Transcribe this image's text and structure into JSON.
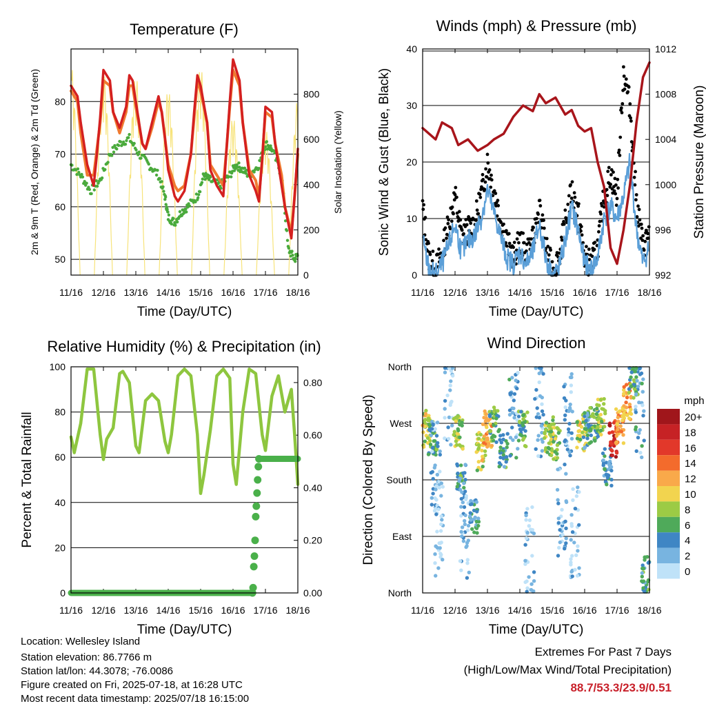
{
  "colors": {
    "t2m": "#d42020",
    "t9m": "#f07a30",
    "td": "#4aaa3c",
    "solar": "#f7e37a",
    "gust": "#000000",
    "wind": "#5b9fd8",
    "pressure": "#a8151b",
    "rh": "#8ec63f",
    "precip": "#4ab04a",
    "extremes": "#c8202a"
  },
  "footer": {
    "location": "Location: Wellesley Island",
    "elevation": "Station elevation: 86.7766 m",
    "latlon": "Station lat/lon: 44.3078; -76.0086",
    "created": "Figure created on Fri, 2025-07-18, at 16:28 UTC",
    "recent": "Most recent data timestamp: 2025/07/18 16:15:00"
  },
  "extremes": {
    "title": "Extremes For Past 7 Days",
    "subtitle": "(High/Low/Max Wind/Total Precipitation)",
    "values": "88.7/53.3/23.9/0.51"
  },
  "chart_data": [
    {
      "type": "line",
      "title": "Temperature (F)",
      "xlabel": "Time (Day/UTC)",
      "ylabel": "2m & 9m T (Red, Orange) & 2m Td (Green)",
      "y2label": "Solar Insolation (Yellow)",
      "x_ticks": [
        "11/16",
        "12/16",
        "13/16",
        "14/16",
        "15/16",
        "16/16",
        "17/16",
        "18/16"
      ],
      "ylim": [
        47,
        90
      ],
      "y_ticks": [
        50,
        60,
        70,
        80
      ],
      "y2lim": [
        0,
        1000
      ],
      "y2_ticks": [
        0,
        200,
        400,
        600,
        800
      ],
      "grid": "horizontal",
      "series": [
        {
          "name": "2m T",
          "axis": "left",
          "key": "t2m",
          "x": [
            0,
            0.2,
            0.3,
            0.5,
            0.7,
            0.8,
            0.9,
            1.0,
            1.2,
            1.3,
            1.5,
            1.7,
            1.8,
            1.9,
            2.0,
            2.2,
            2.3,
            2.5,
            2.7,
            2.8,
            2.9,
            3.0,
            3.2,
            3.3,
            3.5,
            3.7,
            3.8,
            3.9,
            4.0,
            4.2,
            4.3,
            4.5,
            4.7,
            4.8,
            4.9,
            5.0,
            5.2,
            5.3,
            5.5,
            5.7,
            5.8,
            5.9,
            6.0,
            6.2,
            6.3,
            6.5,
            6.6,
            6.8,
            6.9,
            7.0
          ],
          "y": [
            83,
            81,
            76,
            68,
            64,
            70,
            77,
            86,
            84,
            78,
            75,
            79,
            85,
            84,
            80,
            72,
            71,
            76,
            81,
            78,
            73,
            67,
            62,
            61,
            63,
            70,
            78,
            85,
            83,
            76,
            67,
            64,
            62,
            71,
            80,
            88,
            84,
            76,
            66,
            63,
            61,
            69,
            79,
            78,
            72,
            64,
            60,
            54,
            62,
            71
          ]
        },
        {
          "name": "9m T",
          "axis": "left",
          "key": "t9m",
          "x": [
            0,
            0.2,
            0.3,
            0.5,
            0.7,
            0.8,
            0.9,
            1.0,
            1.2,
            1.3,
            1.5,
            1.7,
            1.8,
            1.9,
            2.0,
            2.2,
            2.3,
            2.5,
            2.7,
            2.8,
            2.9,
            3.0,
            3.2,
            3.3,
            3.5,
            3.7,
            3.8,
            3.9,
            4.0,
            4.2,
            4.3,
            4.5,
            4.7,
            4.8,
            4.9,
            5.0,
            5.2,
            5.3,
            5.5,
            5.7,
            5.8,
            5.9,
            6.0,
            6.2,
            6.3,
            6.5,
            6.6,
            6.8,
            6.9,
            7.0
          ],
          "y": [
            82,
            80,
            74,
            66,
            66,
            71,
            76,
            84,
            83,
            78,
            74,
            78,
            83,
            83,
            79,
            72,
            71,
            75,
            80,
            78,
            73,
            68,
            64,
            63,
            64,
            70,
            77,
            84,
            82,
            76,
            68,
            66,
            64,
            71,
            79,
            86,
            83,
            76,
            67,
            65,
            62,
            69,
            78,
            77,
            72,
            66,
            60,
            55,
            62,
            70
          ]
        },
        {
          "name": "2m Td",
          "axis": "left",
          "key": "td",
          "x": [
            0,
            0.3,
            0.6,
            0.9,
            1.2,
            1.5,
            1.8,
            2.1,
            2.4,
            2.7,
            2.9,
            3.0,
            3.2,
            3.4,
            3.6,
            3.9,
            4.1,
            4.3,
            4.6,
            4.9,
            5.1,
            5.3,
            5.5,
            5.8,
            6.0,
            6.2,
            6.5,
            6.7,
            6.9,
            7.0
          ],
          "y": [
            68,
            66,
            63,
            65,
            70,
            72,
            73,
            70,
            68,
            66,
            62,
            58,
            57,
            59,
            60,
            62,
            66,
            65,
            64,
            66,
            68,
            67,
            66,
            68,
            72,
            71,
            66,
            52,
            50,
            51
          ]
        },
        {
          "name": "Solar",
          "axis": "right",
          "key": "solar",
          "peaks": [
            0.0,
            1.0,
            2.0,
            3.0,
            4.0,
            5.0,
            6.0,
            7.0
          ],
          "peak_values": [
            930,
            900,
            880,
            820,
            920,
            700,
            650,
            780
          ]
        }
      ]
    },
    {
      "type": "line",
      "title": "Winds (mph) & Pressure (mb)",
      "xlabel": "Time (Day/UTC)",
      "ylabel": "Sonic Wind & Gust (Blue, Black)",
      "y2label": "Station Pressure (Maroon)",
      "x_ticks": [
        "11/16",
        "12/16",
        "13/16",
        "14/16",
        "15/16",
        "16/16",
        "17/16",
        "18/16"
      ],
      "ylim": [
        0,
        40
      ],
      "y_ticks": [
        0,
        10,
        20,
        30,
        40
      ],
      "y2lim": [
        992,
        1012
      ],
      "y2_ticks": [
        992,
        996,
        1000,
        1004,
        1008,
        1012
      ],
      "grid": "horizontal",
      "series": [
        {
          "name": "Station Pressure",
          "axis": "right",
          "key": "pressure",
          "x": [
            0,
            0.4,
            0.6,
            0.9,
            1.1,
            1.4,
            1.7,
            2.0,
            2.2,
            2.5,
            2.8,
            3.1,
            3.4,
            3.6,
            3.8,
            4.1,
            4.4,
            4.6,
            4.8,
            5.0,
            5.2,
            5.4,
            5.6,
            5.8,
            6.0,
            6.2,
            6.4,
            6.6,
            6.8,
            7.0
          ],
          "y": [
            1005,
            1004,
            1005.5,
            1005,
            1003.5,
            1004,
            1003,
            1003.5,
            1004,
            1004.5,
            1006,
            1007,
            1006.5,
            1008,
            1007.2,
            1007.7,
            1006.2,
            1006.6,
            1005.2,
            1004.7,
            1005,
            1002,
            999.8,
            994.4,
            993,
            996,
            1000,
            1005.5,
            1009.5,
            1010.8
          ]
        },
        {
          "name": "Sonic Wind",
          "axis": "left",
          "key": "wind",
          "x": [
            0,
            0.2,
            0.4,
            0.6,
            0.8,
            1.0,
            1.2,
            1.4,
            1.6,
            1.8,
            2.0,
            2.2,
            2.4,
            2.6,
            2.8,
            3.0,
            3.2,
            3.4,
            3.6,
            3.8,
            4.0,
            4.2,
            4.4,
            4.6,
            4.8,
            5.0,
            5.2,
            5.4,
            5.6,
            5.8,
            6.0,
            6.2,
            6.4,
            6.6,
            6.8,
            7.0
          ],
          "y": [
            6,
            1,
            0,
            2,
            5,
            9,
            4,
            6,
            7,
            10,
            15,
            11,
            7,
            3,
            2,
            4,
            2,
            4,
            9,
            3,
            0,
            1,
            6,
            12,
            8,
            2,
            1,
            3,
            10,
            12,
            10,
            14,
            20,
            8,
            2,
            5
          ]
        },
        {
          "name": "Gust",
          "axis": "left",
          "key": "gust",
          "x": [
            0,
            0.2,
            0.4,
            0.6,
            0.8,
            1.0,
            1.2,
            1.4,
            1.6,
            1.8,
            2.0,
            2.2,
            2.4,
            2.6,
            2.8,
            3.0,
            3.2,
            3.4,
            3.6,
            3.8,
            4.0,
            4.2,
            4.4,
            4.6,
            4.8,
            5.0,
            5.2,
            5.4,
            5.6,
            5.8,
            6.0,
            6.2,
            6.4,
            6.6,
            6.8,
            7.0
          ],
          "y": [
            12,
            3,
            1,
            4,
            9,
            14,
            7,
            8,
            9,
            14,
            20,
            15,
            10,
            6,
            3,
            6,
            4,
            6,
            12,
            5,
            1,
            3,
            9,
            15,
            11,
            3,
            2,
            5,
            14,
            18,
            14,
            36,
            30,
            13,
            5,
            8
          ]
        }
      ]
    },
    {
      "type": "line",
      "title": "Relative Humidity (%) & Precipitation (in)",
      "xlabel": "Time (Day/UTC)",
      "ylabel": "Percent & Total Rainfall",
      "x_ticks": [
        "11/16",
        "12/16",
        "13/16",
        "14/16",
        "15/16",
        "16/16",
        "17/16",
        "18/16"
      ],
      "ylim": [
        0,
        100
      ],
      "y_ticks": [
        0,
        20,
        40,
        60,
        80,
        100
      ],
      "y2lim": [
        0,
        0.86
      ],
      "y2_ticks": [
        0.0,
        0.2,
        0.4,
        0.6,
        0.8
      ],
      "grid": "horizontal",
      "series": [
        {
          "name": "RH",
          "axis": "left",
          "key": "rh",
          "x": [
            0,
            0.1,
            0.3,
            0.5,
            0.7,
            0.9,
            1.0,
            1.1,
            1.3,
            1.5,
            1.6,
            1.8,
            2.0,
            2.1,
            2.3,
            2.5,
            2.7,
            2.9,
            3.0,
            3.1,
            3.3,
            3.5,
            3.7,
            3.9,
            4.0,
            4.1,
            4.3,
            4.5,
            4.7,
            4.9,
            5.0,
            5.1,
            5.3,
            5.5,
            5.7,
            5.9,
            6.0,
            6.2,
            6.4,
            6.6,
            6.8,
            6.9,
            7.0
          ],
          "y": [
            69,
            62,
            75,
            99,
            99,
            70,
            59,
            68,
            73,
            97,
            98,
            93,
            65,
            62,
            85,
            88,
            85,
            67,
            62,
            70,
            96,
            99,
            96,
            70,
            44,
            52,
            72,
            96,
            99,
            95,
            57,
            48,
            80,
            99,
            97,
            70,
            63,
            87,
            96,
            80,
            90,
            70,
            48
          ]
        },
        {
          "name": "Precipitation",
          "axis": "right",
          "key": "precip",
          "x": [
            0,
            5.6,
            5.62,
            5.64,
            5.66,
            5.68,
            5.7,
            5.72,
            5.74,
            5.76,
            5.78,
            5.8,
            7.0
          ],
          "y": [
            0,
            0,
            0.02,
            0.1,
            0.14,
            0.2,
            0.29,
            0.33,
            0.38,
            0.43,
            0.48,
            0.51,
            0.51
          ]
        }
      ]
    },
    {
      "type": "scatter",
      "title": "Wind Direction",
      "xlabel": "Time (Day/UTC)",
      "ylabel": "Direction (Colored By Speed)",
      "x_ticks": [
        "11/16",
        "12/16",
        "13/16",
        "14/16",
        "15/16",
        "16/16",
        "17/16",
        "18/16"
      ],
      "y_ticks": [
        "North",
        "East",
        "South",
        "West",
        "North"
      ],
      "ylim": [
        0,
        360
      ],
      "grid": "horizontal",
      "legend": {
        "title": "mph",
        "position": "right",
        "labels": [
          "20+",
          "18",
          "16",
          "14",
          "12",
          "10",
          "8",
          "6",
          "4",
          "2",
          "0"
        ],
        "colors": [
          "#a0161b",
          "#c62225",
          "#e2382a",
          "#f36b2c",
          "#f9a94a",
          "#f2d44f",
          "#9ccb45",
          "#4faa5a",
          "#3f86c4",
          "#78b4e0",
          "#bfe2f8"
        ]
      },
      "clusters": [
        {
          "x": 0.1,
          "dir": 262,
          "spd": 9
        },
        {
          "x": 0.3,
          "dir": 250,
          "spd": 6
        },
        {
          "x": 0.4,
          "dir": 200,
          "spd": 2
        },
        {
          "x": 0.5,
          "dir": 100,
          "spd": 1
        },
        {
          "x": 0.8,
          "dir": 310,
          "spd": 1
        },
        {
          "x": 1.1,
          "dir": 255,
          "spd": 8
        },
        {
          "x": 1.2,
          "dir": 180,
          "spd": 5
        },
        {
          "x": 1.3,
          "dir": 90,
          "spd": 2
        },
        {
          "x": 1.6,
          "dir": 125,
          "spd": 4
        },
        {
          "x": 1.8,
          "dir": 225,
          "spd": 9
        },
        {
          "x": 2.0,
          "dir": 260,
          "spd": 12
        },
        {
          "x": 2.2,
          "dir": 270,
          "spd": 6
        },
        {
          "x": 2.5,
          "dir": 230,
          "spd": 5
        },
        {
          "x": 2.8,
          "dir": 280,
          "spd": 3
        },
        {
          "x": 3.1,
          "dir": 260,
          "spd": 6
        },
        {
          "x": 3.3,
          "dir": 70,
          "spd": 1
        },
        {
          "x": 3.6,
          "dir": 290,
          "spd": 2
        },
        {
          "x": 3.9,
          "dir": 250,
          "spd": 8
        },
        {
          "x": 4.1,
          "dir": 240,
          "spd": 7
        },
        {
          "x": 4.3,
          "dir": 130,
          "spd": 2
        },
        {
          "x": 4.5,
          "dir": 280,
          "spd": 2
        },
        {
          "x": 4.7,
          "dir": 100,
          "spd": 1
        },
        {
          "x": 4.9,
          "dir": 255,
          "spd": 9
        },
        {
          "x": 5.1,
          "dir": 260,
          "spd": 5
        },
        {
          "x": 5.3,
          "dir": 265,
          "spd": 6
        },
        {
          "x": 5.5,
          "dir": 280,
          "spd": 8
        },
        {
          "x": 5.7,
          "dir": 200,
          "spd": 4
        },
        {
          "x": 5.9,
          "dir": 245,
          "spd": 17
        },
        {
          "x": 6.1,
          "dir": 265,
          "spd": 12
        },
        {
          "x": 6.3,
          "dir": 305,
          "spd": 12
        },
        {
          "x": 6.5,
          "dir": 340,
          "spd": 6
        },
        {
          "x": 6.7,
          "dir": 290,
          "spd": 3
        },
        {
          "x": 6.9,
          "dir": 30,
          "spd": 5
        }
      ]
    }
  ]
}
